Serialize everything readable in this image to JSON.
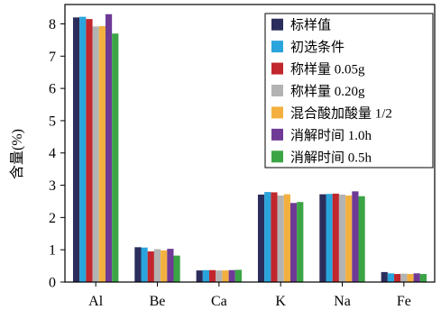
{
  "chart_data": {
    "type": "bar",
    "ylabel": "含量(%)",
    "xlabel": "",
    "title": "",
    "categories": [
      "Al",
      "Be",
      "Ca",
      "K",
      "Na",
      "Fe"
    ],
    "ylim": [
      0,
      8.6
    ],
    "yticks": [
      0,
      1,
      2,
      3,
      4,
      5,
      6,
      7,
      8
    ],
    "legend_position": "top-right",
    "series": [
      {
        "name": "标样值",
        "color": "#2b2d5c",
        "values": [
          8.2,
          1.08,
          0.36,
          2.71,
          2.72,
          0.31
        ]
      },
      {
        "name": "初选条件",
        "color": "#2aa4dc",
        "values": [
          8.22,
          1.07,
          0.37,
          2.79,
          2.73,
          0.27
        ]
      },
      {
        "name": "称样量 0.05g",
        "color": "#c1272d",
        "values": [
          8.15,
          0.95,
          0.37,
          2.78,
          2.74,
          0.25
        ]
      },
      {
        "name": "称样量 0.20g",
        "color": "#b3b3b3",
        "values": [
          7.92,
          1.02,
          0.36,
          2.68,
          2.71,
          0.26
        ]
      },
      {
        "name": "混合酸加酸量 1/2",
        "color": "#f4b03e",
        "values": [
          7.93,
          0.98,
          0.36,
          2.72,
          2.68,
          0.25
        ]
      },
      {
        "name": "消解时间 1.0h",
        "color": "#6e3a96",
        "values": [
          8.3,
          1.03,
          0.37,
          2.45,
          2.81,
          0.27
        ]
      },
      {
        "name": "消解时间 0.5h",
        "color": "#3ba445",
        "values": [
          7.7,
          0.82,
          0.38,
          2.48,
          2.66,
          0.25
        ]
      }
    ]
  }
}
